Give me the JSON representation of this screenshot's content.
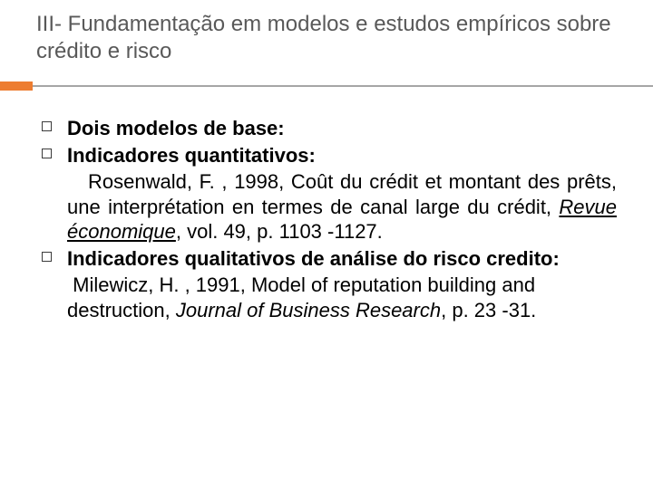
{
  "colors": {
    "background": "#ffffff",
    "title_text": "#595959",
    "body_text": "#000000",
    "divider_line": "#a6a6a6",
    "divider_accent": "#ed7d31",
    "bullet_border": "#3b3b3b"
  },
  "typography": {
    "title_fontsize": 24,
    "title_weight": 400,
    "body_fontsize": 22,
    "bold_weight": 700,
    "font_family": "Arial"
  },
  "title": "III- Fundamentação em modelos e estudos empíricos sobre crédito e risco",
  "bullets": [
    {
      "text": "Dois modelos de base:",
      "bold": true
    },
    {
      "text": "Indicadores quantitativos:",
      "bold": true
    },
    {
      "text": "Indicadores qualitativos de análise do risco credito:",
      "bold": true
    }
  ],
  "ref1": {
    "pre": "Rosenwald, F. , 1998, Coût du crédit et montant des prêts, une interprétation en termes de canal large du crédit, ",
    "italic": "Revue économique",
    "post": ", vol. 49, p. 1103 -1127."
  },
  "ref2": {
    "pre": "Milewicz, H. , 1991, Model of reputation building and destruction, ",
    "italic": "Journal of Business Research",
    "post": ", p. 23 -31."
  }
}
